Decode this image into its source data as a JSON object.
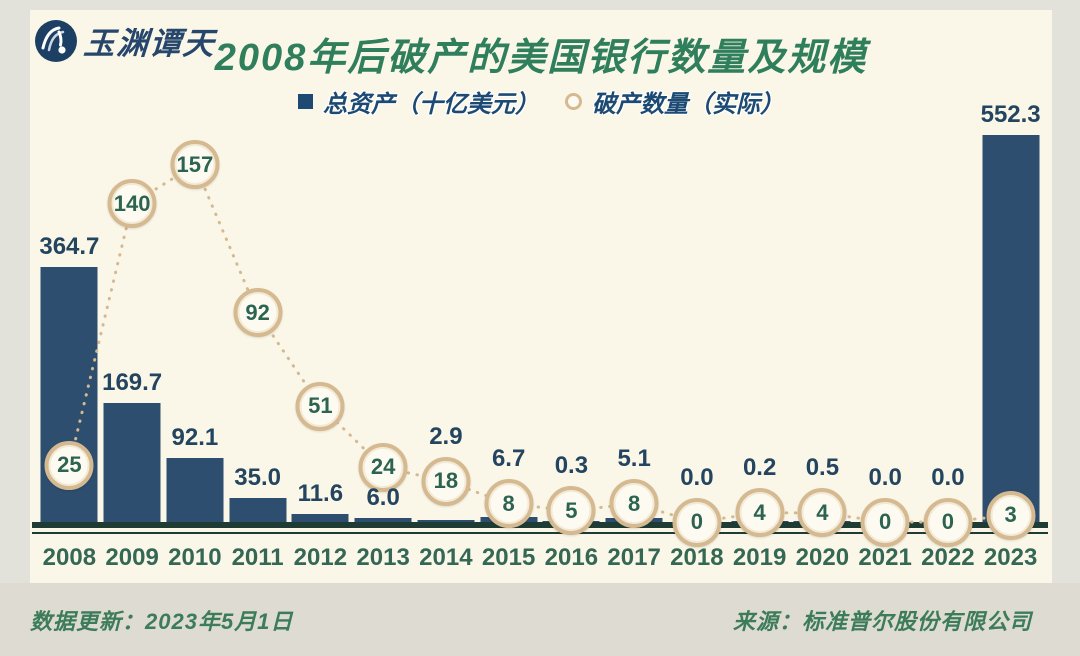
{
  "brand": {
    "name": "玉渊谭天"
  },
  "chart": {
    "title": "2008年后破产的美国银行数量及规模",
    "legend": {
      "assets": "总资产（十亿美元）",
      "count": "破产数量（实际）"
    }
  },
  "chart_data": {
    "type": "bar",
    "title": "2008年后破产的美国银行数量及规模",
    "categories": [
      "2008",
      "2009",
      "2010",
      "2011",
      "2012",
      "2013",
      "2014",
      "2015",
      "2016",
      "2017",
      "2018",
      "2019",
      "2020",
      "2021",
      "2022",
      "2023"
    ],
    "series": [
      {
        "name": "总资产（十亿美元）",
        "render": "bar",
        "values": [
          364.7,
          169.7,
          92.1,
          35.0,
          11.6,
          6.0,
          2.9,
          6.7,
          0.3,
          5.1,
          0.0,
          0.2,
          0.5,
          0.0,
          0.0,
          552.3
        ]
      },
      {
        "name": "破产数量（实际）",
        "render": "dotted-line-with-circle-markers",
        "values": [
          25,
          140,
          157,
          92,
          51,
          24,
          18,
          8,
          5,
          8,
          0,
          4,
          4,
          0,
          0,
          3
        ]
      }
    ],
    "xlabel": "",
    "ylabel": "",
    "legend_position": "top",
    "grid": false,
    "colors": {
      "bar": "#2d4e6f",
      "bar_label": "#24455f",
      "marker_ring": "#d5b990",
      "marker_fill": "#fdfbf1",
      "marker_text": "#2c6351",
      "dotted_line": "#d5b990",
      "axis_line": "#1e3c34",
      "x_label": "#356755",
      "title": "#2f7e5c",
      "card_bg": "#fbf7e8",
      "page_bg": "#e3e2da"
    }
  },
  "footer": {
    "updated": "数据更新：2023年5月1日",
    "source": "来源：标准普尔股份有限公司"
  }
}
